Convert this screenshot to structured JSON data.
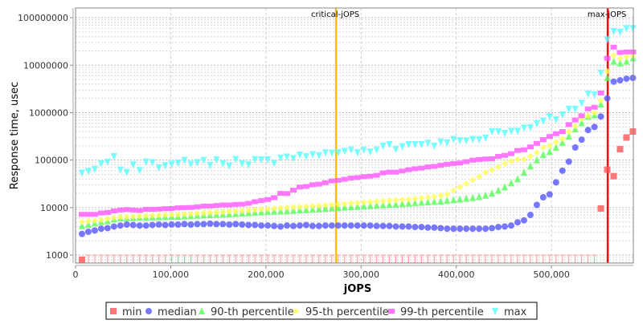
{
  "chart_data": {
    "type": "scatter",
    "xlabel": "jOPS",
    "ylabel": "Response time, usec",
    "xlim": [
      0,
      586000
    ],
    "ylim": [
      680,
      160000000
    ],
    "yscale": "log",
    "grid": true,
    "legend_placement": "bottom",
    "x_ticks": [
      "0",
      "100,000",
      "200,000",
      "300,000",
      "400,000",
      "500,000"
    ],
    "x_tick_values": [
      0,
      100000,
      200000,
      300000,
      400000,
      500000
    ],
    "y_ticks": [
      "1000",
      "10000",
      "100000",
      "1000000",
      "10000000",
      "100000000"
    ],
    "y_tick_values": [
      1000,
      10000,
      100000,
      1000000,
      10000000,
      100000000
    ],
    "vertical_markers": [
      {
        "label": "critical-jOPS",
        "x": 273650,
        "color": "#ffc000"
      },
      {
        "label": "max-jOPS",
        "x": 559100,
        "color": "#ee1111"
      }
    ],
    "x": [
      6730,
      13460,
      20190,
      26920,
      33650,
      40380,
      47110,
      53840,
      60570,
      67300,
      74030,
      80760,
      87490,
      94220,
      100950,
      107680,
      114410,
      121140,
      127870,
      134600,
      141330,
      148060,
      154790,
      161520,
      168250,
      174980,
      181710,
      188440,
      195170,
      201900,
      208630,
      215360,
      222090,
      228820,
      235550,
      242280,
      249010,
      255740,
      262470,
      269200,
      275930,
      282660,
      289390,
      296120,
      302850,
      309580,
      316310,
      323040,
      329770,
      336500,
      343230,
      349960,
      356690,
      363420,
      370150,
      376880,
      383610,
      390340,
      397070,
      403800,
      410530,
      417260,
      423990,
      430720,
      437450,
      444180,
      450910,
      457640,
      464370,
      471100,
      477830,
      484560,
      491290,
      498020,
      504750,
      511480,
      518210,
      524940,
      531670,
      538400,
      545130,
      551860,
      558590,
      565320,
      572050,
      578780,
      585510
    ],
    "series": [
      {
        "name": "min",
        "marker": "square",
        "color": "#ff5555",
        "values": [
          800,
          null,
          null,
          null,
          null,
          null,
          null,
          null,
          null,
          null,
          null,
          null,
          null,
          null,
          null,
          null,
          null,
          null,
          null,
          null,
          null,
          null,
          null,
          null,
          null,
          null,
          null,
          null,
          null,
          null,
          null,
          null,
          null,
          null,
          null,
          null,
          null,
          null,
          null,
          null,
          null,
          null,
          null,
          null,
          null,
          null,
          null,
          null,
          null,
          null,
          null,
          null,
          null,
          null,
          null,
          null,
          null,
          null,
          null,
          null,
          null,
          null,
          null,
          null,
          null,
          null,
          null,
          null,
          null,
          null,
          null,
          null,
          null,
          null,
          null,
          null,
          null,
          null,
          null,
          null,
          null,
          9600,
          63000,
          46000,
          170000,
          300000,
          400000
        ]
      },
      {
        "name": "median",
        "marker": "circle",
        "color": "#5555ff",
        "values": [
          2800,
          3100,
          3300,
          3600,
          3700,
          4000,
          4200,
          4400,
          4300,
          4200,
          4200,
          4300,
          4400,
          4300,
          4400,
          4400,
          4500,
          4400,
          4500,
          4500,
          4600,
          4500,
          4500,
          4400,
          4500,
          4400,
          4300,
          4300,
          4200,
          4200,
          4100,
          4000,
          4200,
          4100,
          4200,
          4300,
          4100,
          4100,
          4200,
          4200,
          4200,
          4200,
          4200,
          4200,
          4200,
          4200,
          4100,
          4100,
          4100,
          4000,
          4000,
          4000,
          3900,
          3900,
          3800,
          3800,
          3700,
          3600,
          3600,
          3600,
          3600,
          3600,
          3600,
          3600,
          3700,
          3900,
          4000,
          4200,
          4900,
          5400,
          7000,
          11400,
          16500,
          19000,
          34000,
          60000,
          93000,
          185000,
          270000,
          430000,
          500000,
          830000,
          2000000,
          4500000,
          4800000,
          5200000,
          5400000
        ]
      },
      {
        "name": "90-th percentile",
        "marker": "triangle-up",
        "color": "#55ff55",
        "values": [
          4100,
          4400,
          4700,
          5000,
          5200,
          5700,
          6000,
          6000,
          6100,
          6200,
          6200,
          6300,
          6300,
          6400,
          6500,
          6500,
          6600,
          6700,
          6800,
          6900,
          7000,
          7100,
          7200,
          7300,
          7400,
          7600,
          7700,
          7900,
          8000,
          8200,
          8300,
          8400,
          8500,
          8600,
          8800,
          8900,
          9100,
          9300,
          9500,
          9700,
          9900,
          10100,
          10300,
          10500,
          10700,
          10900,
          11100,
          11300,
          11500,
          11700,
          12000,
          12200,
          12500,
          12800,
          13000,
          13300,
          13600,
          14000,
          14500,
          15000,
          15500,
          16000,
          17000,
          18000,
          20000,
          23000,
          27000,
          33000,
          40000,
          55000,
          74000,
          100000,
          130000,
          150000,
          185000,
          235000,
          315000,
          450000,
          610000,
          830000,
          890000,
          1500000,
          5400000,
          12000000,
          11000000,
          12000000,
          14000000
        ]
      },
      {
        "name": "95-th percentile",
        "marker": "diamond",
        "color": "#ffff55",
        "values": [
          5000,
          5200,
          5300,
          5500,
          5800,
          6100,
          6300,
          6400,
          6500,
          6600,
          6700,
          6800,
          6900,
          7000,
          7100,
          7200,
          7300,
          7400,
          7600,
          7700,
          7800,
          8000,
          8100,
          8300,
          8400,
          8600,
          8800,
          9000,
          9200,
          9400,
          9600,
          9800,
          10000,
          10200,
          10400,
          10600,
          10800,
          11000,
          11300,
          11500,
          11800,
          12000,
          12300,
          12600,
          12900,
          13200,
          13500,
          13800,
          14100,
          14400,
          14700,
          15000,
          15500,
          16000,
          16500,
          17000,
          18000,
          19000,
          23000,
          27000,
          32000,
          38000,
          45000,
          55000,
          62000,
          72000,
          85000,
          95000,
          104000,
          104000,
          120000,
          145000,
          185000,
          200000,
          240000,
          280000,
          400000,
          520000,
          740000,
          860000,
          1000000,
          1800000,
          7400000,
          16000000,
          14000000,
          15000000,
          16000000
        ]
      },
      {
        "name": "99-th percentile",
        "marker": "rect",
        "color": "#ff55ff",
        "values": [
          7200,
          7200,
          7200,
          7700,
          7900,
          8500,
          8900,
          9100,
          8900,
          8700,
          9200,
          9200,
          9300,
          9500,
          9600,
          9900,
          10000,
          10100,
          10400,
          10800,
          10800,
          11100,
          11400,
          11400,
          11700,
          11800,
          12300,
          13300,
          14100,
          14800,
          16200,
          20000,
          19800,
          23300,
          27000,
          27900,
          30400,
          31200,
          33600,
          36500,
          37500,
          39500,
          42000,
          43000,
          45000,
          46000,
          48000,
          54000,
          56000,
          56000,
          59000,
          63000,
          66000,
          68000,
          72000,
          74000,
          78000,
          82000,
          85000,
          87000,
          93000,
          100000,
          103000,
          106000,
          107000,
          120000,
          126000,
          137000,
          160000,
          165000,
          190000,
          225000,
          270000,
          315000,
          360000,
          400000,
          560000,
          700000,
          860000,
          1200000,
          1300000,
          2600000,
          14000000,
          24000000,
          18500000,
          19000000,
          19000000
        ]
      },
      {
        "name": "max",
        "marker": "triangle-down",
        "color": "#55ffff",
        "values": [
          54000,
          59000,
          65000,
          85000,
          92000,
          120000,
          63000,
          56000,
          81000,
          61000,
          93000,
          90000,
          70000,
          77000,
          83000,
          88000,
          100000,
          83000,
          90000,
          100000,
          79000,
          103000,
          85000,
          76000,
          105000,
          85000,
          81000,
          104000,
          103000,
          103000,
          87000,
          112000,
          118000,
          110000,
          130000,
          120000,
          133000,
          126000,
          145000,
          142000,
          145000,
          155000,
          165000,
          145000,
          165000,
          150000,
          165000,
          200000,
          215000,
          170000,
          195000,
          215000,
          215000,
          215000,
          230000,
          200000,
          245000,
          235000,
          275000,
          260000,
          258000,
          275000,
          273000,
          295000,
          400000,
          400000,
          370000,
          410000,
          410000,
          480000,
          490000,
          590000,
          670000,
          830000,
          720000,
          910000,
          1200000,
          1200000,
          1600000,
          2500000,
          2400000,
          6900000,
          35000000,
          52000000,
          50000000,
          60000000,
          60000000
        ]
      }
    ]
  }
}
